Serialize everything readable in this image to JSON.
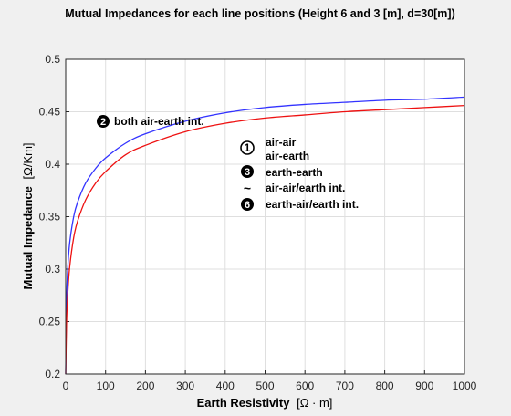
{
  "chart_data": {
    "type": "line",
    "title": "Mutual Impedances for each line positions  (Height 6 and 3 [m], d=30[m])",
    "xlabel_main": "Earth Resistivity",
    "xlabel_unit": "[Ω · m]",
    "ylabel_main": "Mutual Impedance",
    "ylabel_unit": "[Ω/Km]",
    "xlim": [
      0,
      1000
    ],
    "ylim": [
      0.2,
      0.5
    ],
    "xticks": [
      0,
      100,
      200,
      300,
      400,
      500,
      600,
      700,
      800,
      900,
      1000
    ],
    "yticks": [
      0.2,
      0.25,
      0.3,
      0.35,
      0.4,
      0.45,
      0.5
    ],
    "ytick_labels": [
      "0.2",
      "0.25",
      "0.3",
      "0.35",
      "0.4",
      "0.45",
      "0.5"
    ],
    "grid": true,
    "series": [
      {
        "color": "#3333ff",
        "x": [
          0,
          2,
          5,
          10,
          20,
          30,
          50,
          75,
          100,
          150,
          200,
          300,
          400,
          500,
          600,
          700,
          800,
          900,
          1000
        ],
        "y": [
          0.2,
          0.268,
          0.3,
          0.325,
          0.35,
          0.364,
          0.382,
          0.396,
          0.406,
          0.42,
          0.429,
          0.441,
          0.449,
          0.454,
          0.457,
          0.459,
          0.461,
          0.462,
          0.464
        ]
      },
      {
        "color": "#ee1111",
        "x": [
          0,
          2,
          5,
          10,
          20,
          30,
          50,
          75,
          100,
          150,
          200,
          300,
          400,
          500,
          600,
          700,
          800,
          900,
          1000
        ],
        "y": [
          0.2,
          0.247,
          0.276,
          0.302,
          0.33,
          0.346,
          0.366,
          0.382,
          0.393,
          0.409,
          0.418,
          0.431,
          0.439,
          0.444,
          0.447,
          0.45,
          0.452,
          0.454,
          0.456
        ]
      }
    ],
    "annotations": [
      {
        "badge": "2",
        "text": "both  air-earth int."
      },
      {
        "badge": "1",
        "text": "air-air"
      },
      {
        "text": "air-earth"
      },
      {
        "badge": "3",
        "text": "earth-earth"
      },
      {
        "mark": "~",
        "text": "air-air/earth int."
      },
      {
        "badge": "6",
        "text": "earth-air/earth int."
      }
    ]
  }
}
